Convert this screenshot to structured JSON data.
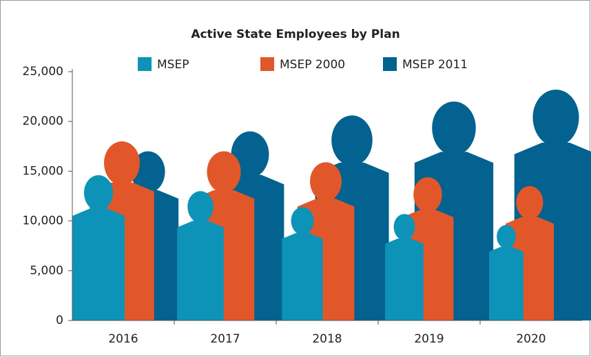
{
  "chart_data": {
    "type": "pictograph",
    "title": "Active State Employees by Plan",
    "categories": [
      "2016",
      "2017",
      "2018",
      "2019",
      "2020"
    ],
    "series": [
      {
        "name": "MSEP",
        "color": "#0e93b8",
        "values": [
          14600,
          13000,
          11400,
          10700,
          9600
        ]
      },
      {
        "name": "MSEP 2000",
        "color": "#e2572a",
        "values": [
          18000,
          17000,
          15900,
          14400,
          13500
        ]
      },
      {
        "name": "MSEP 2011",
        "color": "#03628f",
        "values": [
          17000,
          19000,
          20600,
          22000,
          23200
        ]
      }
    ],
    "ylim": [
      0,
      25000
    ],
    "yticks": [
      0,
      {
        "value": 5000,
        "label": "5,000"
      },
      {
        "value": 10000,
        "label": "10,000"
      },
      {
        "value": 15000,
        "label": "15,000"
      },
      {
        "value": 20000,
        "label": "20,000"
      },
      {
        "value": 25000,
        "label": "25,000"
      }
    ]
  }
}
